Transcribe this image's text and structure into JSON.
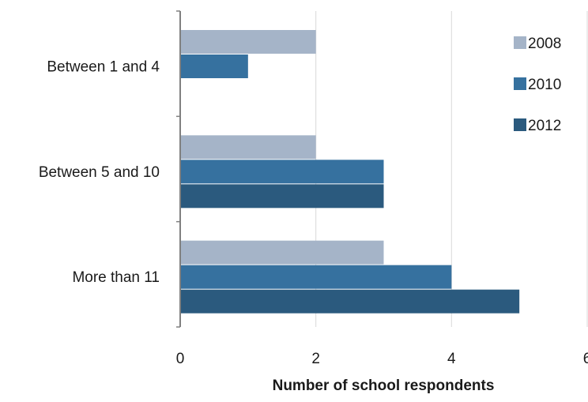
{
  "chart_data": {
    "type": "bar",
    "orientation": "horizontal",
    "categories": [
      "Between 1 and 4",
      "Between 5 and 10",
      "More than 11"
    ],
    "series": [
      {
        "name": "2008",
        "values": [
          2,
          2,
          3
        ],
        "color": "#a5b4c8"
      },
      {
        "name": "2010",
        "values": [
          1,
          3,
          4
        ],
        "color": "#36719f"
      },
      {
        "name": "2012",
        "values": [
          null,
          3,
          5
        ],
        "color": "#2b5a7e"
      }
    ],
    "xlabel": "Number of school respondents",
    "xlim": [
      0,
      6
    ],
    "xticks": [
      0,
      2,
      4,
      6
    ],
    "grid": true,
    "legend_position": "top-right"
  }
}
